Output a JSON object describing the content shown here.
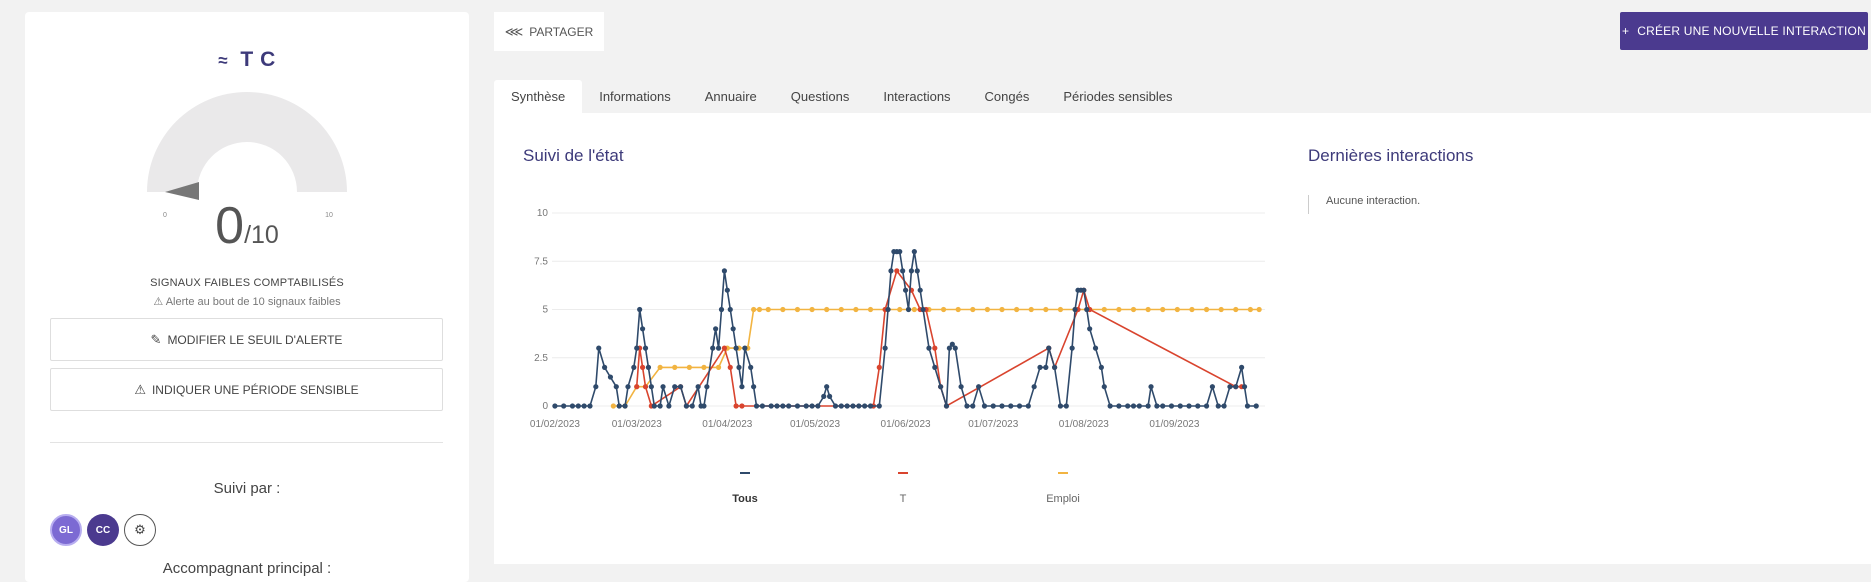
{
  "profile": {
    "name": "T          C",
    "gauge": {
      "value": "0",
      "max": "/10",
      "min_tick": "0",
      "max_tick": "10",
      "fill_fraction": 0.0
    },
    "caption": "SIGNAUX FAIBLES COMPTABILISÉS",
    "alert": "⚠ Alerte au bout de 10 signaux faibles",
    "modify_threshold_label": "MODIFIER LE SEUIL D'ALERTE",
    "sensitive_period_label": "INDIQUER UNE PÉRIODE SENSIBLE",
    "followed_by_label": "Suivi par :",
    "avatars": [
      "GL",
      "CC"
    ],
    "main_companion_label": "Accompagnant principal :"
  },
  "toolbar": {
    "share_label": "PARTAGER",
    "create_label": "CRÉER UNE NOUVELLE INTERACTION"
  },
  "tabs": [
    {
      "label": "Synthèse",
      "active": true
    },
    {
      "label": "Informations"
    },
    {
      "label": "Annuaire"
    },
    {
      "label": "Questions"
    },
    {
      "label": "Interactions"
    },
    {
      "label": "Congés"
    },
    {
      "label": "Périodes sensibles"
    }
  ],
  "summary": {
    "chart_title": "Suivi de l'état",
    "interactions_title": "Dernières interactions",
    "no_interaction": "Aucune interaction."
  },
  "colors": {
    "accent": "#4b3a8f",
    "tous": "#2f4a6b",
    "t": "#d9442e",
    "emploi": "#f2b441"
  },
  "chart_data": {
    "type": "line",
    "x_ticks": [
      "01/02/2023",
      "01/03/2023",
      "01/04/2023",
      "01/05/2023",
      "01/06/2023",
      "01/07/2023",
      "01/08/2023",
      "01/09/2023"
    ],
    "y_ticks": [
      "0",
      "2.5",
      "5",
      "7.5",
      "10"
    ],
    "ylim": [
      0,
      10
    ],
    "xlim": [
      "2023-01-31",
      "2023-10-02"
    ],
    "series": [
      {
        "name": "Tous",
        "color": "#2f4a6b",
        "points": [
          [
            "2023-02-01",
            0
          ],
          [
            "2023-02-04",
            0
          ],
          [
            "2023-02-07",
            0
          ],
          [
            "2023-02-09",
            0
          ],
          [
            "2023-02-11",
            0
          ],
          [
            "2023-02-13",
            0
          ],
          [
            "2023-02-15",
            1
          ],
          [
            "2023-02-16",
            3
          ],
          [
            "2023-02-18",
            2
          ],
          [
            "2023-02-20",
            1.5
          ],
          [
            "2023-02-22",
            1
          ],
          [
            "2023-02-23",
            0
          ],
          [
            "2023-02-25",
            0
          ],
          [
            "2023-02-26",
            1
          ],
          [
            "2023-02-28",
            2
          ],
          [
            "2023-03-01",
            3
          ],
          [
            "2023-03-02",
            5
          ],
          [
            "2023-03-03",
            4
          ],
          [
            "2023-03-04",
            3
          ],
          [
            "2023-03-05",
            2
          ],
          [
            "2023-03-06",
            1
          ],
          [
            "2023-03-07",
            0
          ],
          [
            "2023-03-09",
            0
          ],
          [
            "2023-03-10",
            1
          ],
          [
            "2023-03-12",
            0
          ],
          [
            "2023-03-14",
            1
          ],
          [
            "2023-03-16",
            1
          ],
          [
            "2023-03-18",
            0
          ],
          [
            "2023-03-20",
            0
          ],
          [
            "2023-03-22",
            1
          ],
          [
            "2023-03-23",
            0
          ],
          [
            "2023-03-24",
            0
          ],
          [
            "2023-03-25",
            1
          ],
          [
            "2023-03-27",
            3
          ],
          [
            "2023-03-28",
            4
          ],
          [
            "2023-03-29",
            3
          ],
          [
            "2023-03-30",
            5
          ],
          [
            "2023-03-31",
            7
          ],
          [
            "2023-04-01",
            6
          ],
          [
            "2023-04-02",
            5
          ],
          [
            "2023-04-03",
            4
          ],
          [
            "2023-04-04",
            3
          ],
          [
            "2023-04-05",
            2
          ],
          [
            "2023-04-06",
            1
          ],
          [
            "2023-04-07",
            3
          ],
          [
            "2023-04-09",
            2
          ],
          [
            "2023-04-10",
            1
          ],
          [
            "2023-04-11",
            0
          ],
          [
            "2023-04-13",
            0
          ],
          [
            "2023-04-16",
            0
          ],
          [
            "2023-04-18",
            0
          ],
          [
            "2023-04-20",
            0
          ],
          [
            "2023-04-22",
            0
          ],
          [
            "2023-04-25",
            0
          ],
          [
            "2023-04-28",
            0
          ],
          [
            "2023-04-30",
            0
          ],
          [
            "2023-05-02",
            0
          ],
          [
            "2023-05-04",
            0.5
          ],
          [
            "2023-05-05",
            1
          ],
          [
            "2023-05-06",
            0.5
          ],
          [
            "2023-05-08",
            0
          ],
          [
            "2023-05-10",
            0
          ],
          [
            "2023-05-12",
            0
          ],
          [
            "2023-05-14",
            0
          ],
          [
            "2023-05-16",
            0
          ],
          [
            "2023-05-18",
            0
          ],
          [
            "2023-05-20",
            0
          ],
          [
            "2023-05-23",
            0
          ],
          [
            "2023-05-25",
            3
          ],
          [
            "2023-05-26",
            5
          ],
          [
            "2023-05-27",
            7
          ],
          [
            "2023-05-28",
            8
          ],
          [
            "2023-05-29",
            8
          ],
          [
            "2023-05-30",
            8
          ],
          [
            "2023-05-31",
            7
          ],
          [
            "2023-06-01",
            6
          ],
          [
            "2023-06-02",
            5
          ],
          [
            "2023-06-03",
            7
          ],
          [
            "2023-06-04",
            8
          ],
          [
            "2023-06-05",
            7
          ],
          [
            "2023-06-06",
            6
          ],
          [
            "2023-06-07",
            5
          ],
          [
            "2023-06-09",
            3
          ],
          [
            "2023-06-11",
            2
          ],
          [
            "2023-06-13",
            1
          ],
          [
            "2023-06-15",
            0
          ],
          [
            "2023-06-16",
            3
          ],
          [
            "2023-06-17",
            3.2
          ],
          [
            "2023-06-18",
            3
          ],
          [
            "2023-06-20",
            1
          ],
          [
            "2023-06-22",
            0
          ],
          [
            "2023-06-24",
            0
          ],
          [
            "2023-06-26",
            1
          ],
          [
            "2023-06-28",
            0
          ],
          [
            "2023-07-01",
            0
          ],
          [
            "2023-07-04",
            0
          ],
          [
            "2023-07-07",
            0
          ],
          [
            "2023-07-10",
            0
          ],
          [
            "2023-07-13",
            0
          ],
          [
            "2023-07-15",
            1
          ],
          [
            "2023-07-17",
            2
          ],
          [
            "2023-07-19",
            2
          ],
          [
            "2023-07-20",
            3
          ],
          [
            "2023-07-22",
            2
          ],
          [
            "2023-07-24",
            0
          ],
          [
            "2023-07-26",
            0
          ],
          [
            "2023-07-28",
            3
          ],
          [
            "2023-07-29",
            5
          ],
          [
            "2023-07-30",
            6
          ],
          [
            "2023-07-31",
            6
          ],
          [
            "2023-08-01",
            6
          ],
          [
            "2023-08-02",
            5
          ],
          [
            "2023-08-03",
            4
          ],
          [
            "2023-08-05",
            3
          ],
          [
            "2023-08-07",
            2
          ],
          [
            "2023-08-08",
            1
          ],
          [
            "2023-08-10",
            0
          ],
          [
            "2023-08-13",
            0
          ],
          [
            "2023-08-16",
            0
          ],
          [
            "2023-08-18",
            0
          ],
          [
            "2023-08-20",
            0
          ],
          [
            "2023-08-23",
            0
          ],
          [
            "2023-08-24",
            1
          ],
          [
            "2023-08-26",
            0
          ],
          [
            "2023-08-28",
            0
          ],
          [
            "2023-08-31",
            0
          ],
          [
            "2023-09-03",
            0
          ],
          [
            "2023-09-06",
            0
          ],
          [
            "2023-09-09",
            0
          ],
          [
            "2023-09-12",
            0
          ],
          [
            "2023-09-14",
            1
          ],
          [
            "2023-09-16",
            0
          ],
          [
            "2023-09-18",
            0
          ],
          [
            "2023-09-20",
            1
          ],
          [
            "2023-09-22",
            1
          ],
          [
            "2023-09-24",
            2
          ],
          [
            "2023-09-25",
            1
          ],
          [
            "2023-09-26",
            0
          ],
          [
            "2023-09-29",
            0
          ]
        ]
      },
      {
        "name": "T",
        "color": "#d9442e",
        "points": [
          [
            "2023-03-01",
            1
          ],
          [
            "2023-03-02",
            3
          ],
          [
            "2023-03-03",
            2
          ],
          [
            "2023-03-04",
            1
          ],
          [
            "2023-03-06",
            0
          ],
          [
            "2023-03-16",
            1
          ],
          [
            "2023-03-18",
            0
          ],
          [
            "2023-03-31",
            3
          ],
          [
            "2023-04-02",
            2
          ],
          [
            "2023-04-04",
            0
          ],
          [
            "2023-04-06",
            0
          ],
          [
            "2023-05-21",
            0
          ],
          [
            "2023-05-23",
            2
          ],
          [
            "2023-05-25",
            5
          ],
          [
            "2023-05-29",
            7
          ],
          [
            "2023-06-03",
            6
          ],
          [
            "2023-06-06",
            5
          ],
          [
            "2023-06-08",
            5
          ],
          [
            "2023-06-11",
            3
          ],
          [
            "2023-06-13",
            1
          ],
          [
            "2023-06-15",
            0
          ],
          [
            "2023-07-20",
            3
          ],
          [
            "2023-07-22",
            2
          ],
          [
            "2023-07-30",
            5
          ],
          [
            "2023-08-01",
            6
          ],
          [
            "2023-08-03",
            5
          ],
          [
            "2023-09-22",
            1
          ],
          [
            "2023-09-24",
            1
          ]
        ]
      },
      {
        "name": "Emploi",
        "color": "#f2b441",
        "points": [
          [
            "2023-02-21",
            0
          ],
          [
            "2023-02-25",
            0
          ],
          [
            "2023-03-01",
            1
          ],
          [
            "2023-03-04",
            1
          ],
          [
            "2023-03-09",
            2
          ],
          [
            "2023-03-14",
            2
          ],
          [
            "2023-03-19",
            2
          ],
          [
            "2023-03-24",
            2
          ],
          [
            "2023-03-29",
            2
          ],
          [
            "2023-04-01",
            3
          ],
          [
            "2023-04-05",
            3
          ],
          [
            "2023-04-08",
            3
          ],
          [
            "2023-04-10",
            5
          ],
          [
            "2023-04-12",
            5
          ],
          [
            "2023-04-15",
            5
          ],
          [
            "2023-04-20",
            5
          ],
          [
            "2023-04-25",
            5
          ],
          [
            "2023-04-30",
            5
          ],
          [
            "2023-05-05",
            5
          ],
          [
            "2023-05-10",
            5
          ],
          [
            "2023-05-15",
            5
          ],
          [
            "2023-05-20",
            5
          ],
          [
            "2023-05-25",
            5
          ],
          [
            "2023-05-30",
            5
          ],
          [
            "2023-06-04",
            5
          ],
          [
            "2023-06-09",
            5
          ],
          [
            "2023-06-14",
            5
          ],
          [
            "2023-06-19",
            5
          ],
          [
            "2023-06-24",
            5
          ],
          [
            "2023-06-29",
            5
          ],
          [
            "2023-07-04",
            5
          ],
          [
            "2023-07-09",
            5
          ],
          [
            "2023-07-14",
            5
          ],
          [
            "2023-07-19",
            5
          ],
          [
            "2023-07-24",
            5
          ],
          [
            "2023-07-29",
            5
          ],
          [
            "2023-08-03",
            5
          ],
          [
            "2023-08-08",
            5
          ],
          [
            "2023-08-13",
            5
          ],
          [
            "2023-08-18",
            5
          ],
          [
            "2023-08-23",
            5
          ],
          [
            "2023-08-28",
            5
          ],
          [
            "2023-09-02",
            5
          ],
          [
            "2023-09-07",
            5
          ],
          [
            "2023-09-12",
            5
          ],
          [
            "2023-09-17",
            5
          ],
          [
            "2023-09-22",
            5
          ],
          [
            "2023-09-27",
            5
          ],
          [
            "2023-09-30",
            5
          ]
        ]
      }
    ],
    "legend": [
      "Tous",
      "T",
      "Emploi"
    ]
  }
}
